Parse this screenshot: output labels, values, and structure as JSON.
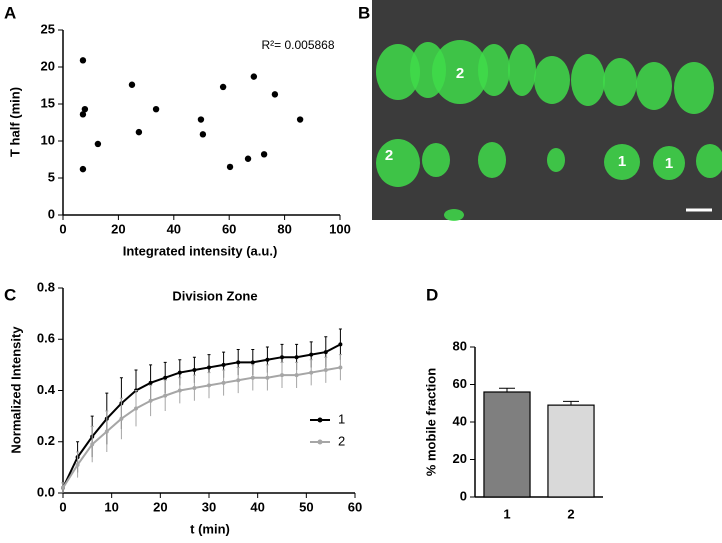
{
  "chart_data": [
    {
      "type": "scatter",
      "panel_label": "A",
      "annotation": "R²= 0.005868",
      "xlabel": "Integrated intensity (a.u.)",
      "ylabel": "T half (min)",
      "x": [
        7.2,
        7.2,
        7.9,
        7.2,
        12.6,
        24.9,
        27.4,
        33.6,
        49.8,
        50.5,
        57.8,
        60.3,
        66.8,
        68.9,
        72.6,
        76.5,
        85.6
      ],
      "values": [
        20.9,
        13.6,
        14.3,
        6.2,
        9.6,
        17.6,
        11.2,
        14.3,
        12.9,
        10.9,
        17.3,
        6.5,
        7.6,
        18.7,
        8.2,
        16.3,
        12.9
      ],
      "color": "#000000",
      "xlim": [
        0,
        100
      ],
      "xticks": [
        0,
        20,
        40,
        60,
        80,
        100
      ],
      "ylim": [
        0,
        25
      ],
      "yticks": [
        0,
        5,
        10,
        15,
        20,
        25
      ]
    },
    {
      "type": "image",
      "panel_label": "B",
      "cell_labels": [
        "2",
        "2",
        "1",
        "1"
      ]
    },
    {
      "type": "line",
      "panel_label": "C",
      "title": "Division Zone",
      "xlabel": "t (min)",
      "ylabel": "Normalized Intensity",
      "x": [
        0,
        3,
        6,
        9,
        12,
        15,
        18,
        21,
        24,
        27,
        30,
        33,
        36,
        39,
        42,
        45,
        48,
        51,
        54,
        57
      ],
      "series": [
        {
          "name": "1",
          "color": "#000000",
          "values": [
            0.02,
            0.14,
            0.22,
            0.29,
            0.35,
            0.4,
            0.43,
            0.45,
            0.47,
            0.48,
            0.49,
            0.5,
            0.51,
            0.51,
            0.52,
            0.53,
            0.53,
            0.54,
            0.55,
            0.58
          ],
          "errors": [
            0.02,
            0.06,
            0.08,
            0.1,
            0.1,
            0.08,
            0.07,
            0.06,
            0.05,
            0.05,
            0.05,
            0.05,
            0.05,
            0.05,
            0.05,
            0.05,
            0.05,
            0.05,
            0.06,
            0.06
          ]
        },
        {
          "name": "2",
          "color": "#a6a6a6",
          "values": [
            0.02,
            0.11,
            0.19,
            0.24,
            0.29,
            0.33,
            0.36,
            0.38,
            0.4,
            0.41,
            0.42,
            0.43,
            0.44,
            0.45,
            0.45,
            0.46,
            0.46,
            0.47,
            0.48,
            0.49
          ],
          "errors": [
            0.02,
            0.05,
            0.07,
            0.08,
            0.08,
            0.07,
            0.06,
            0.06,
            0.05,
            0.05,
            0.05,
            0.05,
            0.05,
            0.05,
            0.05,
            0.05,
            0.05,
            0.05,
            0.05,
            0.05
          ]
        }
      ],
      "xlim": [
        0,
        60
      ],
      "xticks": [
        0,
        10,
        20,
        30,
        40,
        50,
        60
      ],
      "ylim": [
        0,
        0.8
      ],
      "yticks": [
        {
          "value": 0,
          "label": "0.0"
        },
        0.2,
        0.4,
        0.6,
        0.8
      ]
    },
    {
      "type": "bar",
      "panel_label": "D",
      "ylabel": "% mobile fraction",
      "categories": [
        "1",
        "2"
      ],
      "values": [
        56,
        49
      ],
      "errors": [
        2,
        2
      ],
      "colors": [
        "#7f7f7f",
        "#d9d9d9"
      ],
      "ylim": [
        0,
        80
      ],
      "yticks": [
        0,
        20,
        40,
        60,
        80
      ]
    }
  ]
}
